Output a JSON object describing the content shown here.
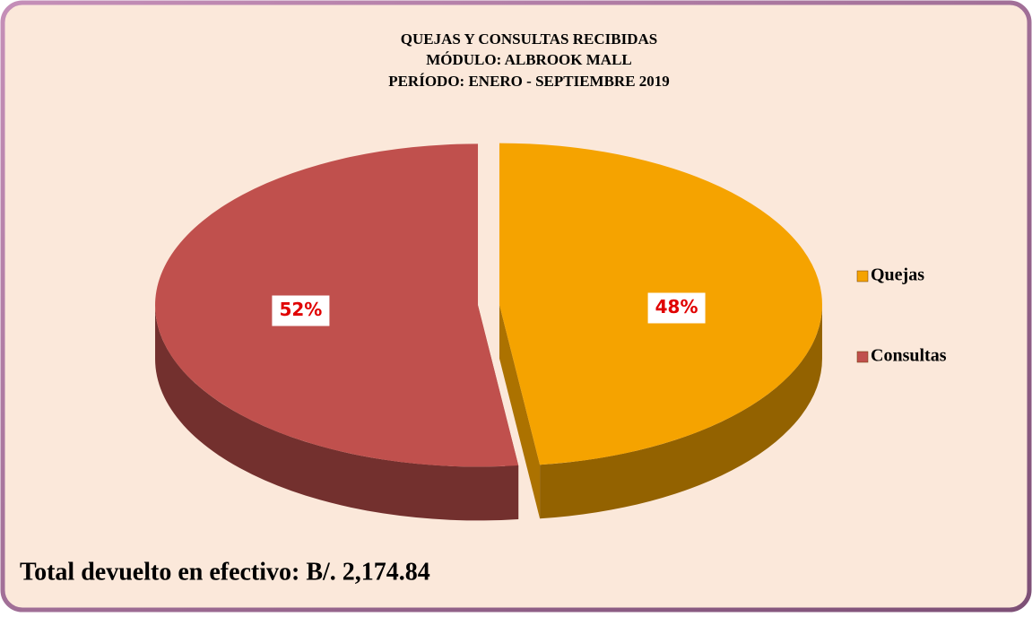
{
  "chart_data": {
    "type": "pie",
    "title": [
      "QUEJAS Y CONSULTAS RECIBIDAS",
      "MÓDULO: ALBROOK MALL",
      "PERÍODO: ENERO - SEPTIEMBRE  2019"
    ],
    "categories": [
      "Quejas",
      "Consultas"
    ],
    "values": [
      48,
      52
    ],
    "value_labels": [
      "48%",
      "52%"
    ],
    "colors": [
      "#f5a300",
      "#c0504d"
    ],
    "legend": "right",
    "annotation": "Total devuelto en efectivo: B/. 2,174.84"
  }
}
